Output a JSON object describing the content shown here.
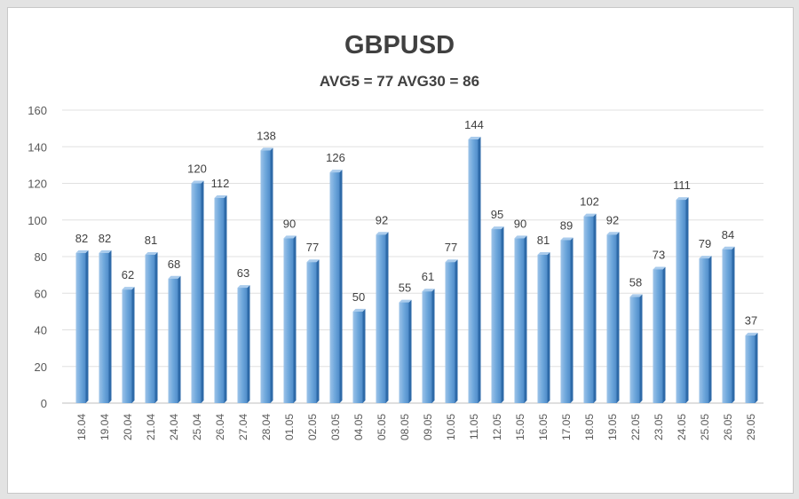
{
  "chart_data": {
    "type": "bar",
    "title": "GBPUSD",
    "subtitle": "AVG5 = 77 AVG30 = 86",
    "xlabel": "",
    "ylabel": "",
    "ylim": [
      0,
      160
    ],
    "yticks": [
      0,
      20,
      40,
      60,
      80,
      100,
      120,
      140,
      160
    ],
    "grid": true,
    "legend": "none",
    "categories": [
      "18.04",
      "19.04",
      "20.04",
      "21.04",
      "24.04",
      "25.04",
      "26.04",
      "27.04",
      "28.04",
      "01.05",
      "02.05",
      "03.05",
      "04.05",
      "05.05",
      "08.05",
      "09.05",
      "10.05",
      "11.05",
      "12.05",
      "15.05",
      "16.05",
      "17.05",
      "18.05",
      "19.05",
      "22.05",
      "23.05",
      "24.05",
      "25.05",
      "26.05",
      "29.05"
    ],
    "values": [
      82,
      82,
      62,
      81,
      68,
      120,
      112,
      63,
      138,
      90,
      77,
      126,
      50,
      92,
      55,
      61,
      77,
      144,
      95,
      90,
      81,
      89,
      102,
      92,
      58,
      73,
      111,
      79,
      84,
      37
    ],
    "bar_color": "#5b9bd5"
  }
}
